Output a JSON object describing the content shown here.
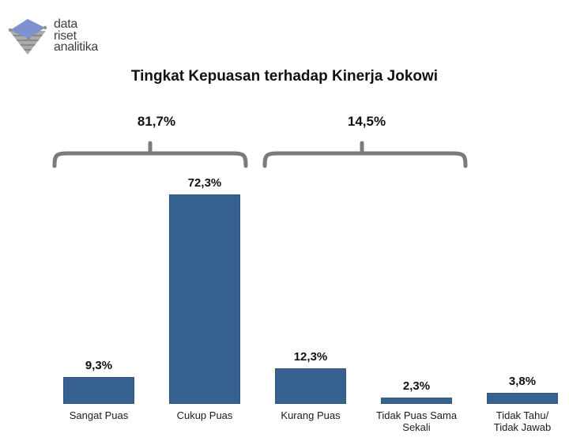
{
  "logo": {
    "line1": "data",
    "line2": "riset",
    "line3": "analitika"
  },
  "chart_data": {
    "type": "bar",
    "title": "Tingkat Kepuasan terhadap Kinerja Jokowi",
    "categories": [
      "Sangat Puas",
      "Cukup Puas",
      "Kurang Puas",
      "Tidak Puas Sama Sekali",
      "Tidak Tahu/ Tidak Jawab"
    ],
    "categories_display": [
      [
        "Sangat Puas"
      ],
      [
        "Cukup Puas"
      ],
      [
        "Kurang Puas"
      ],
      [
        "Tidak Puas Sama",
        "Sekali"
      ],
      [
        "Tidak Tahu/",
        "Tidak Jawab"
      ]
    ],
    "values": [
      9.3,
      72.3,
      12.3,
      2.3,
      3.8
    ],
    "value_labels": [
      "9,3%",
      "72,3%",
      "12,3%",
      "2,3%",
      "3,8%"
    ],
    "groups": [
      {
        "label": "81,7%",
        "from_category": "Sangat Puas",
        "to_category": "Cukup Puas"
      },
      {
        "label": "14,5%",
        "from_category": "Kurang Puas",
        "to_category": "Tidak Puas Sama Sekali"
      }
    ],
    "xlabel": "",
    "ylabel": "",
    "ylim": [
      0,
      80
    ],
    "axes_visible": false,
    "grid": false,
    "legend": false,
    "bar_color": "#37618e",
    "bracket_color": "#7b7b7b"
  }
}
